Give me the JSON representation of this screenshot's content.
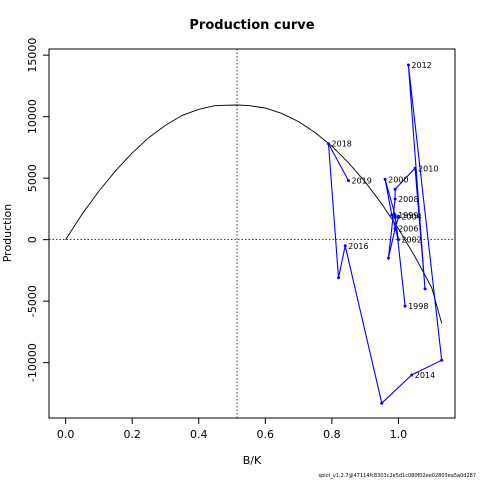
{
  "chart_data": {
    "type": "line",
    "title": "Production curve",
    "xlabel": "B/K",
    "ylabel": "Production",
    "xlim": [
      -0.05,
      1.17
    ],
    "ylim": [
      -14500,
      15500
    ],
    "x_ticks": [
      0.0,
      0.2,
      0.4,
      0.6,
      0.8,
      1.0
    ],
    "x_tick_labels": [
      "0.0",
      "0.2",
      "0.4",
      "0.6",
      "0.8",
      "1.0"
    ],
    "y_ticks": [
      -10000,
      -5000,
      0,
      5000,
      10000,
      15000
    ],
    "y_tick_labels": [
      "-10000",
      "-5000",
      "0",
      "5000",
      "10000",
      "15000"
    ],
    "reference_lines": {
      "vertical_x": 0.515,
      "horizontal_y": 0
    },
    "production_curve": {
      "color": "#000000",
      "points": [
        {
          "x": 0.0,
          "y": 0
        },
        {
          "x": 0.05,
          "y": 2100
        },
        {
          "x": 0.1,
          "y": 3950
        },
        {
          "x": 0.15,
          "y": 5600
        },
        {
          "x": 0.2,
          "y": 7050
        },
        {
          "x": 0.25,
          "y": 8300
        },
        {
          "x": 0.3,
          "y": 9300
        },
        {
          "x": 0.35,
          "y": 10100
        },
        {
          "x": 0.4,
          "y": 10600
        },
        {
          "x": 0.45,
          "y": 10900
        },
        {
          "x": 0.515,
          "y": 10950
        },
        {
          "x": 0.55,
          "y": 10900
        },
        {
          "x": 0.6,
          "y": 10700
        },
        {
          "x": 0.65,
          "y": 10250
        },
        {
          "x": 0.7,
          "y": 9600
        },
        {
          "x": 0.75,
          "y": 8700
        },
        {
          "x": 0.8,
          "y": 7600
        },
        {
          "x": 0.85,
          "y": 6250
        },
        {
          "x": 0.9,
          "y": 4700
        },
        {
          "x": 0.95,
          "y": 2900
        },
        {
          "x": 1.0,
          "y": 900
        },
        {
          "x": 1.05,
          "y": -1400
        },
        {
          "x": 1.1,
          "y": -3900
        },
        {
          "x": 1.13,
          "y": -6800
        }
      ]
    },
    "series": [
      {
        "color": "#0000ff",
        "points": [
          {
            "x": 1.02,
            "y": -5400,
            "label": "1998"
          },
          {
            "x": 0.99,
            "y": 2000,
            "label": "1999"
          },
          {
            "x": 0.96,
            "y": 4900,
            "label": "2000"
          },
          {
            "x": 0.98,
            "y": 2000,
            "label": "2001"
          },
          {
            "x": 1.0,
            "y": 0,
            "label": "2002"
          },
          {
            "x": 0.99,
            "y": 1800,
            "label": "2003"
          },
          {
            "x": 1.0,
            "y": 1900,
            "label": "2004"
          },
          {
            "x": 1.0,
            "y": 1800,
            "label": "2005"
          },
          {
            "x": 0.99,
            "y": 900,
            "label": "2006"
          },
          {
            "x": 0.97,
            "y": -1500,
            "label": "2007"
          },
          {
            "x": 0.99,
            "y": 3300,
            "label": "2008"
          },
          {
            "x": 0.99,
            "y": 4100,
            "label": "2009"
          },
          {
            "x": 1.05,
            "y": 5800,
            "label": "2010"
          },
          {
            "x": 1.08,
            "y": -4000,
            "label": "2011"
          },
          {
            "x": 1.03,
            "y": 14200,
            "label": "2012"
          },
          {
            "x": 1.13,
            "y": -9800,
            "label": "2013"
          },
          {
            "x": 1.04,
            "y": -11000,
            "label": "2014"
          },
          {
            "x": 0.95,
            "y": -13300,
            "label": "2015"
          },
          {
            "x": 0.84,
            "y": -500,
            "label": "2016"
          },
          {
            "x": 0.82,
            "y": -3100,
            "label": "2017"
          },
          {
            "x": 0.79,
            "y": 7800,
            "label": "2018"
          },
          {
            "x": 0.85,
            "y": 4800,
            "label": "2019"
          }
        ],
        "labeled_years": [
          "1998",
          "1999",
          "2000",
          "2002",
          "2004",
          "2006",
          "2008",
          "2010",
          "2012",
          "2014",
          "2016",
          "2018",
          "2019"
        ]
      }
    ],
    "grid": false,
    "legend": "none",
    "caption": "spict_v1.2.7@47114fc8303c2e5d1c080f02ee02803ea5a0d287"
  }
}
